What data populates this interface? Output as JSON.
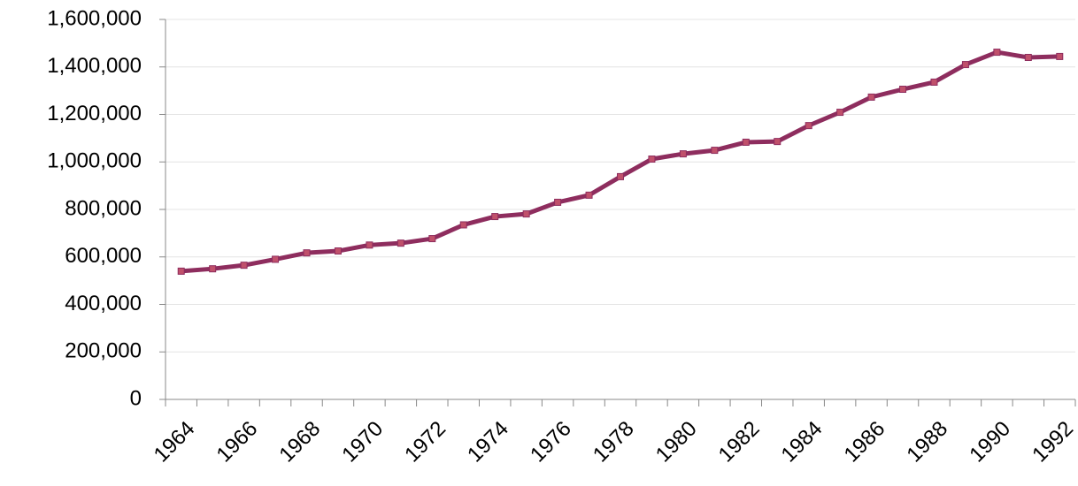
{
  "chart_data": {
    "type": "line",
    "categories": [
      "1964",
      null,
      "1966",
      null,
      "1968",
      null,
      "1970",
      null,
      "1972",
      null,
      "1974",
      null,
      "1976",
      null,
      "1978",
      null,
      "1980",
      null,
      "1982",
      null,
      "1984",
      null,
      "1986",
      null,
      "1988",
      null,
      "1990",
      null,
      "1992"
    ],
    "values": [
      540000,
      550000,
      565000,
      590000,
      617000,
      625000,
      650000,
      658000,
      677000,
      735000,
      770000,
      781000,
      830000,
      860000,
      938000,
      1012000,
      1034000,
      1049000,
      1083000,
      1086000,
      1153000,
      1209000,
      1273000,
      1306000,
      1336000,
      1410000,
      1462000,
      1440000,
      1444000
    ],
    "color": "#8e2d5e",
    "marker_color": "#c0506b",
    "ylim": [
      0,
      1600000
    ],
    "yticks": [
      0,
      {
        "value": 200000,
        "label": "200,000"
      },
      {
        "value": 400000,
        "label": "400,000"
      },
      {
        "value": 600000,
        "label": "600,000"
      },
      {
        "value": 800000,
        "label": "800,000"
      },
      {
        "value": 1000000,
        "label": "1,000,000"
      },
      {
        "value": 1200000,
        "label": "1,200,000"
      },
      {
        "value": 1400000,
        "label": "1,400,000"
      },
      {
        "value": 1600000,
        "label": "1,600,000"
      }
    ],
    "grid": true
  }
}
